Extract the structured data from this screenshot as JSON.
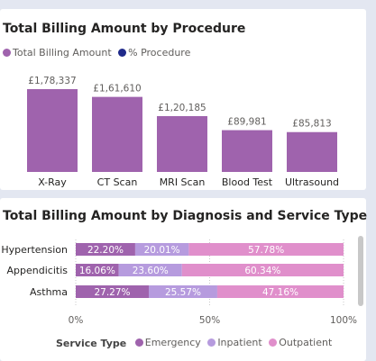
{
  "chart_data": [
    {
      "type": "bar",
      "title": "Total Billing Amount by Procedure",
      "legend": [
        {
          "name": "Total Billing Amount",
          "color": "#9f63ad"
        },
        {
          "name": "% Procedure",
          "color": "#1f2a8a"
        }
      ],
      "categories": [
        "X-Ray",
        "CT Scan",
        "MRI Scan",
        "Blood Test",
        "Ultrasound"
      ],
      "values": [
        178337,
        161610,
        120185,
        89981,
        85813
      ],
      "data_labels": [
        "£1,78,337",
        "£1,61,610",
        "£1,20,185",
        "£89,981",
        "£85,813"
      ],
      "bar_color": "#9f63ad",
      "ylim": [
        0,
        178337
      ],
      "grid": false
    },
    {
      "type": "bar",
      "orientation": "horizontal",
      "stacked": "100%",
      "title": "Total Billing Amount by Diagnosis and Service Type",
      "categories": [
        "Hypertension",
        "Appendicitis",
        "Asthma"
      ],
      "legend_title": "Service Type",
      "series": [
        {
          "name": "Emergency",
          "color": "#9f63ad",
          "values": [
            22.2,
            16.06,
            27.27
          ]
        },
        {
          "name": "Inpatient",
          "color": "#b69bde",
          "values": [
            20.01,
            23.6,
            25.57
          ]
        },
        {
          "name": "Outpatient",
          "color": "#e08fcb",
          "values": [
            57.78,
            60.34,
            47.16
          ]
        }
      ],
      "xticks": [
        "0%",
        "50%",
        "100%"
      ],
      "xlim": [
        0,
        100
      ],
      "grid": true,
      "legend_position": "bottom"
    }
  ]
}
